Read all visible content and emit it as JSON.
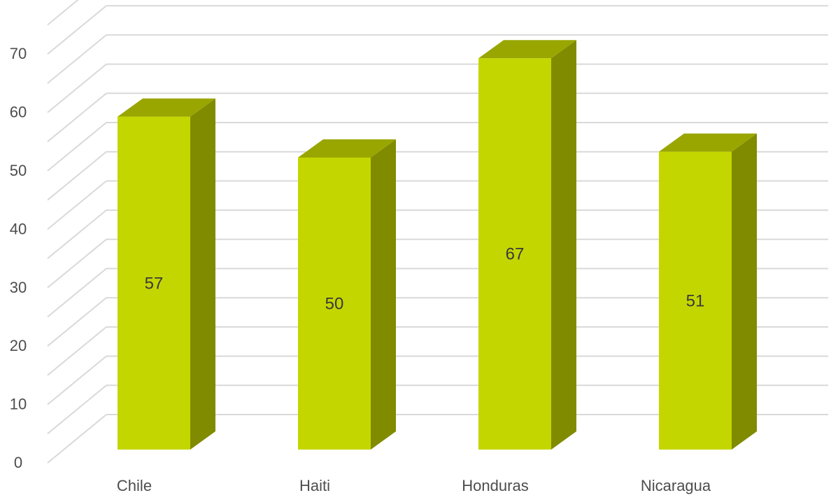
{
  "chart_data": {
    "type": "bar",
    "style": "3d-column",
    "title": "",
    "xlabel": "",
    "ylabel": "",
    "categories": [
      "Chile",
      "Haiti",
      "Honduras",
      "Nicaragua"
    ],
    "values": [
      57,
      50,
      67,
      51
    ],
    "data_labels": [
      "57",
      "50",
      "67",
      "51"
    ],
    "ylim": [
      0,
      70
    ],
    "yticks": [
      0,
      10,
      20,
      30,
      40,
      50,
      60,
      70
    ],
    "ytick_labels": [
      "0",
      "10",
      "20",
      "30",
      "40",
      "50",
      "60",
      "70"
    ],
    "grid": true,
    "legend": "none",
    "colors": {
      "bar_front": "#c4d600",
      "bar_top": "#99a600",
      "bar_side": "#808b00",
      "grid": "#d9d9d9",
      "text": "#4d4d4d"
    }
  }
}
